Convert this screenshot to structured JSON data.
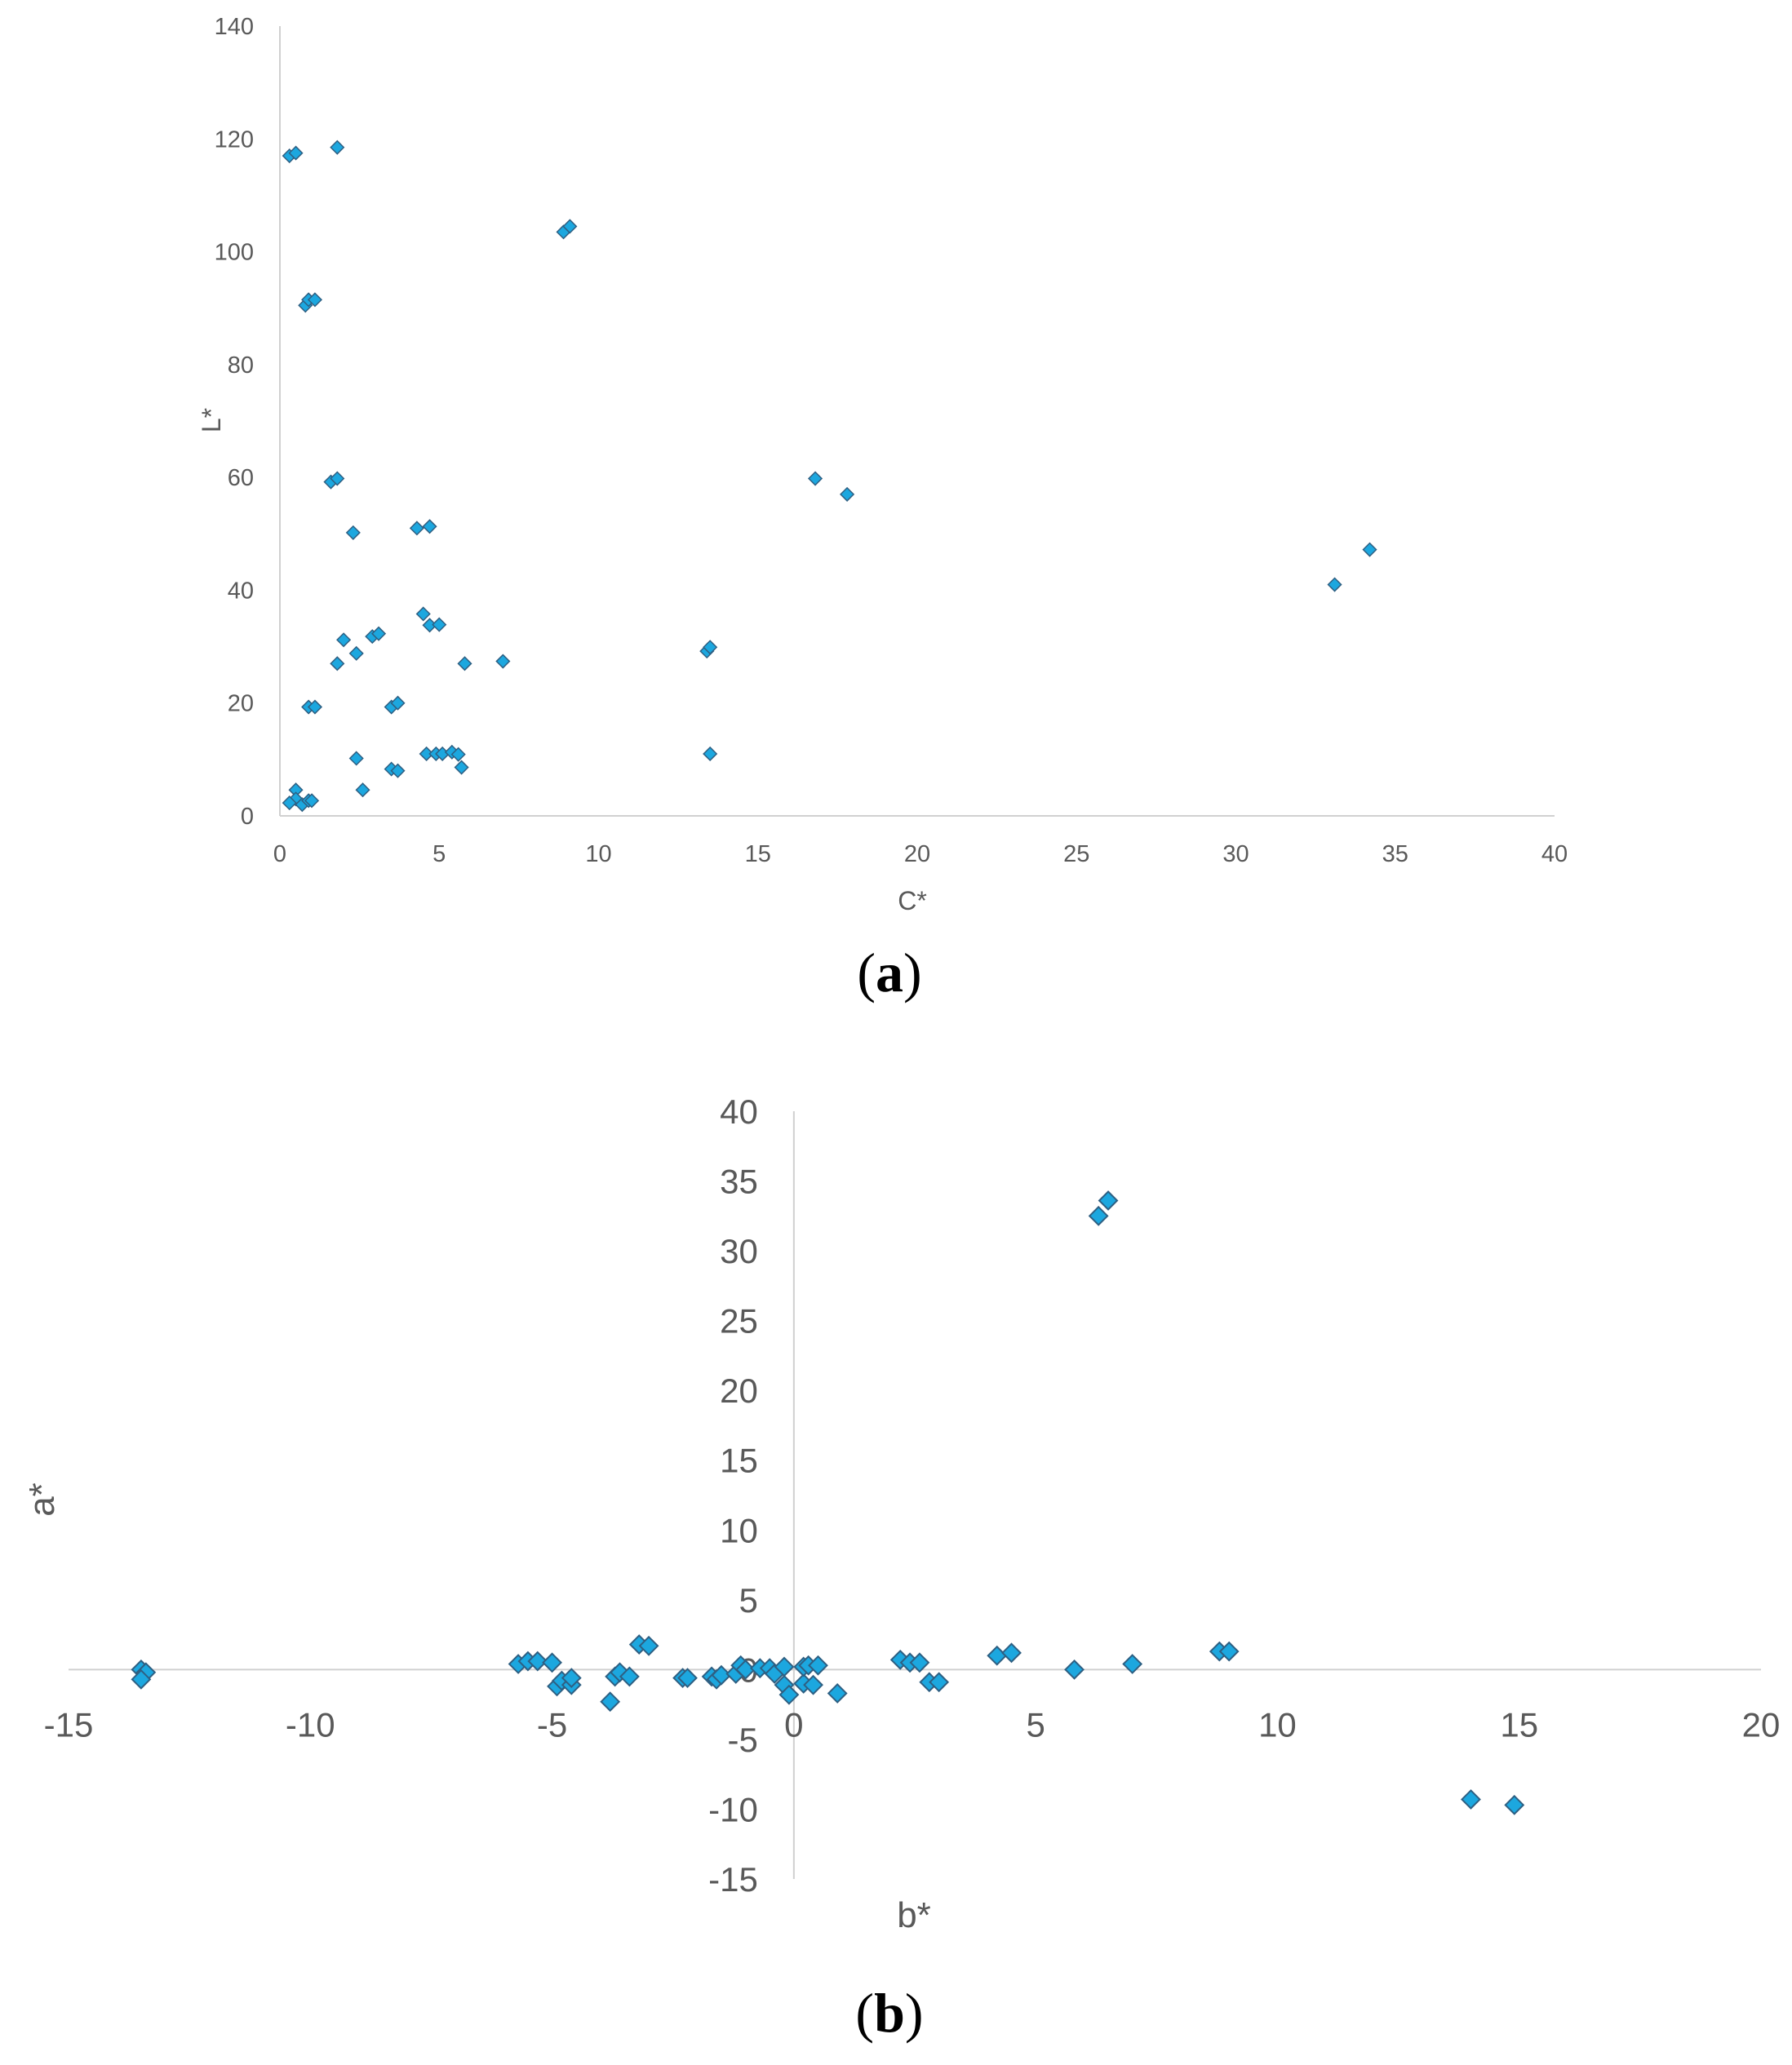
{
  "colors": {
    "marker_fill": "#1CA7DF",
    "marker_edge": "#2E5F82",
    "axis": "#D0D0D0",
    "text": "#595959"
  },
  "chart_data": [
    {
      "type": "scatter",
      "panel_label": "(a)",
      "panel_letter": "a",
      "xlabel": "C*",
      "ylabel": "L*",
      "xlim": [
        0,
        40
      ],
      "ylim": [
        0,
        140
      ],
      "xticks": [
        0,
        5,
        10,
        15,
        20,
        25,
        30,
        35,
        40
      ],
      "yticks": [
        0,
        20,
        40,
        60,
        80,
        100,
        120,
        140
      ],
      "grid": false,
      "marker": "diamond",
      "points": [
        [
          0.3,
          117
        ],
        [
          0.5,
          117.5
        ],
        [
          1.8,
          118.5
        ],
        [
          8.9,
          103.5
        ],
        [
          9.1,
          104.5
        ],
        [
          0.8,
          90.5
        ],
        [
          0.9,
          91.5
        ],
        [
          1.1,
          91.5
        ],
        [
          1.6,
          59.2
        ],
        [
          1.8,
          59.8
        ],
        [
          16.8,
          59.8
        ],
        [
          17.8,
          57.0
        ],
        [
          2.3,
          50.2
        ],
        [
          4.3,
          51.0
        ],
        [
          4.7,
          51.3
        ],
        [
          34.2,
          47.2
        ],
        [
          33.1,
          41.0
        ],
        [
          4.5,
          35.8
        ],
        [
          4.7,
          33.8
        ],
        [
          5.0,
          33.9
        ],
        [
          2.9,
          31.8
        ],
        [
          3.1,
          32.3
        ],
        [
          2.0,
          31.2
        ],
        [
          2.4,
          28.8
        ],
        [
          13.4,
          29.2
        ],
        [
          13.5,
          29.9
        ],
        [
          1.8,
          27.0
        ],
        [
          5.8,
          27.0
        ],
        [
          7.0,
          27.4
        ],
        [
          3.5,
          19.3
        ],
        [
          3.7,
          20.0
        ],
        [
          0.9,
          19.3
        ],
        [
          1.1,
          19.3
        ],
        [
          4.6,
          11.0
        ],
        [
          4.9,
          11.0
        ],
        [
          5.1,
          11.0
        ],
        [
          5.4,
          11.3
        ],
        [
          5.6,
          10.9
        ],
        [
          13.5,
          11.0
        ],
        [
          2.4,
          10.2
        ],
        [
          5.7,
          8.6
        ],
        [
          3.5,
          8.3
        ],
        [
          3.7,
          8.0
        ],
        [
          0.5,
          4.6
        ],
        [
          2.6,
          4.6
        ],
        [
          0.5,
          3.0
        ],
        [
          0.7,
          2.0
        ],
        [
          0.3,
          2.3
        ],
        [
          0.9,
          2.7
        ],
        [
          1.0,
          2.7
        ]
      ]
    },
    {
      "type": "scatter",
      "panel_label": "(b)",
      "panel_letter": "b",
      "xlabel": "b*",
      "ylabel": "a*",
      "xlim": [
        -15,
        20
      ],
      "ylim": [
        -15,
        40
      ],
      "xticks": [
        -15,
        -10,
        -5,
        0,
        5,
        10,
        15,
        20
      ],
      "yticks": [
        -15,
        -10,
        -5,
        0,
        5,
        10,
        15,
        20,
        25,
        30,
        35,
        40
      ],
      "grid": false,
      "marker": "diamond",
      "axes_through_origin": true,
      "points": [
        [
          6.3,
          32.5
        ],
        [
          6.5,
          33.6
        ],
        [
          -13.5,
          0.0
        ],
        [
          -13.4,
          -0.2
        ],
        [
          -13.5,
          -0.7
        ],
        [
          -5.7,
          0.4
        ],
        [
          -5.5,
          0.6
        ],
        [
          -5.3,
          0.6
        ],
        [
          -5.0,
          0.5
        ],
        [
          -4.9,
          -1.2
        ],
        [
          -4.8,
          -0.8
        ],
        [
          -4.6,
          -1.1
        ],
        [
          -4.6,
          -0.6
        ],
        [
          -3.8,
          -2.3
        ],
        [
          -3.7,
          -0.5
        ],
        [
          -3.6,
          -0.2
        ],
        [
          -3.4,
          -0.5
        ],
        [
          -3.2,
          1.8
        ],
        [
          -3.0,
          1.7
        ],
        [
          -2.3,
          -0.6
        ],
        [
          -2.2,
          -0.6
        ],
        [
          -1.7,
          -0.5
        ],
        [
          -1.6,
          -0.7
        ],
        [
          -1.5,
          -0.4
        ],
        [
          -1.2,
          -0.3
        ],
        [
          -1.1,
          0.3
        ],
        [
          -1.0,
          0.0
        ],
        [
          -0.7,
          0.1
        ],
        [
          -0.5,
          0.1
        ],
        [
          -0.4,
          -0.3
        ],
        [
          -0.2,
          0.2
        ],
        [
          -0.2,
          -1.1
        ],
        [
          -0.1,
          -1.8
        ],
        [
          0.2,
          -1.0
        ],
        [
          0.2,
          0.2
        ],
        [
          0.3,
          0.3
        ],
        [
          0.5,
          0.3
        ],
        [
          0.4,
          -1.1
        ],
        [
          0.9,
          -1.7
        ],
        [
          2.2,
          0.7
        ],
        [
          2.4,
          0.5
        ],
        [
          2.6,
          0.5
        ],
        [
          2.8,
          -0.9
        ],
        [
          3.0,
          -0.9
        ],
        [
          4.2,
          1.0
        ],
        [
          4.5,
          1.2
        ],
        [
          5.8,
          0.0
        ],
        [
          7.0,
          0.4
        ],
        [
          8.8,
          1.3
        ],
        [
          9.0,
          1.3
        ],
        [
          14.0,
          -9.3
        ],
        [
          14.9,
          -9.7
        ]
      ]
    }
  ]
}
